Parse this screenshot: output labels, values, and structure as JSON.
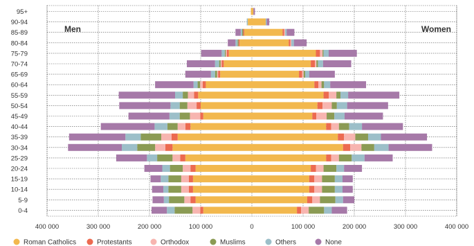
{
  "chart_data": {
    "type": "bar",
    "orientation": "horizontal",
    "stacked": true,
    "diverging": true,
    "left_label": "Men",
    "right_label": "Women",
    "categories": [
      "95+",
      "90-94",
      "85-89",
      "80-84",
      "75-79",
      "70-74",
      "65-69",
      "60-64",
      "55-59",
      "50-54",
      "45-49",
      "40-44",
      "35-39",
      "30-34",
      "25-29",
      "20-24",
      "15-19",
      "10-14",
      "5-9",
      "0-4"
    ],
    "xlim": [
      -400000,
      400000
    ],
    "x_ticks": [
      -400000,
      -300000,
      -200000,
      -100000,
      0,
      100000,
      200000,
      300000,
      400000
    ],
    "x_tick_labels": [
      "400 000",
      "300 000",
      "200 000",
      "100 000",
      "0",
      "100 000",
      "200 000",
      "300 000",
      "400 000"
    ],
    "grid": true,
    "legend_position": "bottom",
    "series": [
      {
        "name": "Roman Catholics",
        "color": "#F2B84E",
        "men": [
          2000,
          8000,
          15000,
          24000,
          45000,
          55000,
          62000,
          90000,
          105000,
          100000,
          95000,
          120000,
          145000,
          155000,
          130000,
          110000,
          115000,
          115000,
          110000,
          95000
        ],
        "women": [
          3000,
          27000,
          60000,
          72000,
          125000,
          115000,
          92000,
          122000,
          140000,
          128000,
          118000,
          145000,
          168000,
          178000,
          145000,
          115000,
          112000,
          112000,
          108000,
          88000
        ]
      },
      {
        "name": "Protestants",
        "color": "#EC6A50",
        "men": [
          0,
          0,
          2000,
          2000,
          4000,
          4000,
          4000,
          6000,
          8000,
          8000,
          6000,
          10000,
          12000,
          14000,
          10000,
          10000,
          8000,
          8000,
          10000,
          6000
        ],
        "women": [
          0,
          0,
          3000,
          3000,
          8000,
          8000,
          6000,
          8000,
          10000,
          10000,
          8000,
          10000,
          12000,
          14000,
          10000,
          10000,
          10000,
          10000,
          10000,
          8000
        ]
      },
      {
        "name": "Orthodox",
        "color": "#F7B5B0",
        "men": [
          0,
          0,
          0,
          0,
          2000,
          2000,
          2000,
          5000,
          12000,
          18000,
          20000,
          15000,
          20000,
          20000,
          15000,
          15000,
          15000,
          15000,
          12000,
          15000
        ],
        "women": [
          0,
          0,
          2000,
          2000,
          5000,
          3000,
          3000,
          6000,
          15000,
          18000,
          20000,
          15000,
          22000,
          22000,
          15000,
          15000,
          15000,
          15000,
          15000,
          15000
        ]
      },
      {
        "name": "Muslims",
        "color": "#8B9B54",
        "men": [
          0,
          0,
          2000,
          2000,
          2000,
          3000,
          4000,
          5000,
          10000,
          15000,
          20000,
          20000,
          40000,
          35000,
          30000,
          25000,
          25000,
          25000,
          30000,
          35000
        ],
        "women": [
          0,
          0,
          0,
          0,
          2000,
          3000,
          3000,
          5000,
          8000,
          10000,
          15000,
          20000,
          25000,
          25000,
          25000,
          25000,
          25000,
          25000,
          30000,
          30000
        ]
      },
      {
        "name": "Others",
        "color": "#9CBFC9",
        "men": [
          0,
          2000,
          3000,
          4000,
          6000,
          8000,
          8000,
          8000,
          15000,
          18000,
          20000,
          25000,
          30000,
          30000,
          20000,
          15000,
          15000,
          10000,
          10000,
          15000
        ],
        "women": [
          0,
          2000,
          3000,
          5000,
          10000,
          10000,
          8000,
          12000,
          15000,
          20000,
          20000,
          25000,
          25000,
          28000,
          25000,
          15000,
          15000,
          15000,
          15000,
          15000
        ]
      },
      {
        "name": "None",
        "color": "#A679A8",
        "men": [
          0,
          0,
          10000,
          15000,
          40000,
          55000,
          50000,
          75000,
          110000,
          100000,
          80000,
          105000,
          110000,
          105000,
          60000,
          35000,
          20000,
          22000,
          22000,
          30000
        ],
        "women": [
          3000,
          5000,
          15000,
          25000,
          55000,
          55000,
          50000,
          70000,
          100000,
          80000,
          75000,
          80000,
          90000,
          85000,
          55000,
          35000,
          20000,
          20000,
          22000,
          30000
        ]
      }
    ]
  }
}
